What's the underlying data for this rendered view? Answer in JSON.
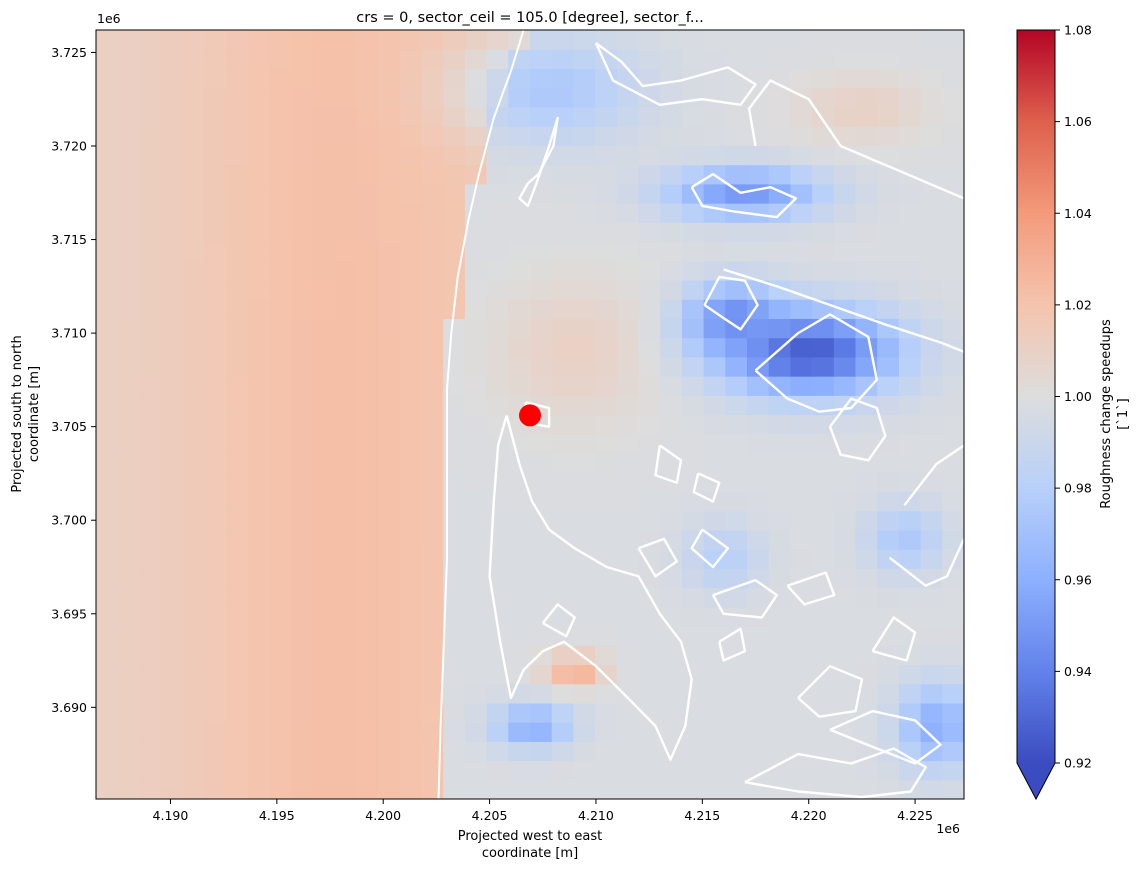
{
  "chart_data": {
    "type": "heatmap",
    "title": "crs = 0, sector_ceil = 105.0 [degree], sector_f...",
    "xlabel_line1": "Projected west to east",
    "xlabel_line2": "coordinate [m]",
    "ylabel_line1": "Projected south to north",
    "ylabel_line2": "coordinate [m]",
    "x_offset_label": "1e6",
    "y_offset_label": "1e6",
    "xlim": [
      4.1865,
      4.2273
    ],
    "ylim": [
      3.6851,
      3.7262
    ],
    "x_ticks": [
      4.19,
      4.195,
      4.2,
      4.205,
      4.21,
      4.215,
      4.22,
      4.225
    ],
    "x_tick_labels": [
      "4.190",
      "4.195",
      "4.200",
      "4.205",
      "4.210",
      "4.215",
      "4.220",
      "4.225"
    ],
    "y_ticks": [
      3.69,
      3.695,
      3.7,
      3.705,
      3.71,
      3.715,
      3.72,
      3.725
    ],
    "y_tick_labels": [
      "3.690",
      "3.695",
      "3.700",
      "3.705",
      "3.710",
      "3.715",
      "3.720",
      "3.725"
    ],
    "grid": false,
    "grid_resolution": [
      40,
      40
    ],
    "colormap": "coolwarm",
    "colormap_low": "#3b4cc0",
    "colormap_mid": "#dddddd",
    "colormap_high": "#b40426",
    "colorbar": {
      "label_line1": "Roughness change speedups",
      "label_line2": "[`1`]",
      "vmin": 0.92,
      "vmax": 1.08,
      "extend": "min",
      "ticks": [
        0.92,
        0.94,
        0.96,
        0.98,
        1.0,
        1.02,
        1.04,
        1.06,
        1.08
      ],
      "tick_labels": [
        "0.92",
        "0.94",
        "0.96",
        "0.98",
        "1.00",
        "1.02",
        "1.04",
        "1.06",
        "1.08"
      ]
    },
    "field_features": [
      {
        "kind": "west_gradient",
        "value_far_west": 1.01,
        "value_near_coast": 1.02
      },
      {
        "kind": "blob",
        "x": 4.22,
        "y": 3.709,
        "rx": 0.0045,
        "ry": 0.0025,
        "value": 0.925
      },
      {
        "kind": "blob",
        "x": 4.2165,
        "y": 3.7108,
        "rx": 0.0025,
        "ry": 0.002,
        "value": 0.945
      },
      {
        "kind": "blob",
        "x": 4.217,
        "y": 3.7175,
        "rx": 0.004,
        "ry": 0.0015,
        "value": 0.95
      },
      {
        "kind": "blob",
        "x": 4.208,
        "y": 3.723,
        "rx": 0.0045,
        "ry": 0.003,
        "value": 0.975
      },
      {
        "kind": "blob",
        "x": 4.207,
        "y": 3.689,
        "rx": 0.002,
        "ry": 0.0013,
        "value": 0.96
      },
      {
        "kind": "blob",
        "x": 4.209,
        "y": 3.692,
        "rx": 0.0015,
        "ry": 0.001,
        "value": 1.03
      },
      {
        "kind": "blob",
        "x": 4.226,
        "y": 3.689,
        "rx": 0.002,
        "ry": 0.0025,
        "value": 0.96
      },
      {
        "kind": "blob",
        "x": 4.2245,
        "y": 3.699,
        "rx": 0.002,
        "ry": 0.002,
        "value": 0.975
      },
      {
        "kind": "blob",
        "x": 4.216,
        "y": 3.698,
        "rx": 0.002,
        "ry": 0.002,
        "value": 0.98
      },
      {
        "kind": "blob",
        "x": 4.2225,
        "y": 3.722,
        "rx": 0.0035,
        "ry": 0.002,
        "value": 1.01
      }
    ],
    "marker": {
      "x": 4.2069,
      "y": 3.7056,
      "color": "#ff0000"
    },
    "contour_color": "#ffffff",
    "coastline": [
      [
        4.2066,
        3.7262
      ],
      [
        4.206,
        3.724
      ],
      [
        4.2052,
        3.7215
      ],
      [
        4.2045,
        3.7185
      ],
      [
        4.204,
        3.716
      ],
      [
        4.2035,
        3.713
      ],
      [
        4.2032,
        3.71
      ],
      [
        4.203,
        3.707
      ],
      [
        4.203,
        3.704
      ],
      [
        4.203,
        3.701
      ],
      [
        4.203,
        3.698
      ],
      [
        4.2029,
        3.695
      ],
      [
        4.2028,
        3.692
      ],
      [
        4.2027,
        3.689
      ],
      [
        4.2026,
        3.6851
      ]
    ],
    "contours": [
      [
        [
          4.2073,
          3.7185
        ],
        [
          4.208,
          3.72
        ],
        [
          4.2082,
          3.7215
        ],
        [
          4.2078,
          3.72
        ],
        [
          4.2072,
          3.718
        ],
        [
          4.2068,
          3.7168
        ],
        [
          4.2064,
          3.7172
        ],
        [
          4.2068,
          3.718
        ],
        [
          4.2073,
          3.7185
        ]
      ],
      [
        [
          4.2058,
          3.7056
        ],
        [
          4.2064,
          3.703
        ],
        [
          4.207,
          3.701
        ],
        [
          4.2078,
          3.6995
        ],
        [
          4.209,
          3.6985
        ],
        [
          4.2105,
          3.6975
        ],
        [
          4.212,
          3.697
        ],
        [
          4.213,
          3.695
        ],
        [
          4.214,
          3.6935
        ],
        [
          4.2145,
          3.6915
        ],
        [
          4.2142,
          3.689
        ],
        [
          4.2135,
          3.6872
        ],
        [
          4.2128,
          3.689
        ],
        [
          4.2115,
          3.6905
        ],
        [
          4.21,
          3.6922
        ],
        [
          4.2085,
          3.6935
        ],
        [
          4.2075,
          3.693
        ],
        [
          4.2066,
          3.692
        ],
        [
          4.206,
          3.6905
        ],
        [
          4.2055,
          3.6935
        ],
        [
          4.205,
          3.697
        ],
        [
          4.2052,
          3.701
        ],
        [
          4.2054,
          3.704
        ],
        [
          4.2058,
          3.7056
        ]
      ],
      [
        [
          4.2067,
          3.7063
        ],
        [
          4.2078,
          3.706
        ],
        [
          4.2078,
          3.705
        ],
        [
          4.2067,
          3.7052
        ],
        [
          4.2067,
          3.7063
        ]
      ],
      [
        [
          4.2151,
          3.7115
        ],
        [
          4.2158,
          3.713
        ],
        [
          4.217,
          3.7128
        ],
        [
          4.2176,
          3.7115
        ],
        [
          4.2168,
          3.7102
        ],
        [
          4.216,
          3.7108
        ],
        [
          4.2151,
          3.7115
        ]
      ],
      [
        [
          4.2175,
          3.708
        ],
        [
          4.2195,
          3.71
        ],
        [
          4.221,
          3.711
        ],
        [
          4.2228,
          3.7098
        ],
        [
          4.2232,
          3.7075
        ],
        [
          4.222,
          3.706
        ],
        [
          4.2205,
          3.7058
        ],
        [
          4.219,
          3.7065
        ],
        [
          4.2175,
          3.708
        ]
      ],
      [
        [
          4.221,
          3.705
        ],
        [
          4.222,
          3.7065
        ],
        [
          4.2232,
          3.706
        ],
        [
          4.2236,
          3.7045
        ],
        [
          4.2228,
          3.7032
        ],
        [
          4.2215,
          3.7035
        ],
        [
          4.221,
          3.705
        ]
      ],
      [
        [
          4.216,
          3.7134
        ],
        [
          4.2185,
          3.7125
        ],
        [
          4.221,
          3.7115
        ],
        [
          4.2235,
          3.7105
        ],
        [
          4.2262,
          3.7095
        ],
        [
          4.2273,
          3.709
        ]
      ],
      [
        [
          4.2145,
          3.7178
        ],
        [
          4.2155,
          3.7185
        ],
        [
          4.2168,
          3.7175
        ],
        [
          4.2182,
          3.7178
        ],
        [
          4.2194,
          3.7172
        ],
        [
          4.2185,
          3.7162
        ],
        [
          4.2165,
          3.7165
        ],
        [
          4.215,
          3.7168
        ],
        [
          4.2145,
          3.7178
        ]
      ],
      [
        [
          4.2175,
          3.72
        ],
        [
          4.2172,
          3.722
        ],
        [
          4.2182,
          3.7235
        ],
        [
          4.22,
          3.7225
        ],
        [
          4.2215,
          3.72
        ],
        [
          4.224,
          3.7188
        ],
        [
          4.2273,
          3.7172
        ]
      ],
      [
        [
          4.21,
          3.7255
        ],
        [
          4.2112,
          3.7245
        ],
        [
          4.2122,
          3.7232
        ],
        [
          4.214,
          3.7235
        ],
        [
          4.2162,
          3.7242
        ],
        [
          4.2175,
          3.7233
        ],
        [
          4.2168,
          3.7222
        ],
        [
          4.215,
          3.7225
        ],
        [
          4.213,
          3.7222
        ],
        [
          4.2108,
          3.7235
        ],
        [
          4.21,
          3.7255
        ]
      ],
      [
        [
          4.2245,
          3.7008
        ],
        [
          4.226,
          3.703
        ],
        [
          4.2273,
          3.704
        ]
      ],
      [
        [
          4.2238,
          3.698
        ],
        [
          4.2255,
          3.6965
        ],
        [
          4.2265,
          3.697
        ],
        [
          4.2273,
          3.699
        ]
      ],
      [
        [
          4.213,
          3.704
        ],
        [
          4.214,
          3.7032
        ],
        [
          4.2138,
          3.702
        ],
        [
          4.2128,
          3.7024
        ],
        [
          4.213,
          3.704
        ]
      ],
      [
        [
          4.2148,
          3.7025
        ],
        [
          4.2158,
          3.702
        ],
        [
          4.2155,
          3.701
        ],
        [
          4.2146,
          3.7015
        ],
        [
          4.2148,
          3.7025
        ]
      ],
      [
        [
          4.215,
          3.6995
        ],
        [
          4.2162,
          3.6985
        ],
        [
          4.2155,
          3.6975
        ],
        [
          4.2145,
          3.6985
        ],
        [
          4.215,
          3.6995
        ]
      ],
      [
        [
          4.212,
          3.6985
        ],
        [
          4.2132,
          3.699
        ],
        [
          4.2138,
          3.6978
        ],
        [
          4.2128,
          3.697
        ],
        [
          4.212,
          3.6985
        ]
      ],
      [
        [
          4.2155,
          3.696
        ],
        [
          4.2175,
          3.6968
        ],
        [
          4.2185,
          3.696
        ],
        [
          4.2178,
          3.6948
        ],
        [
          4.216,
          3.695
        ],
        [
          4.2155,
          3.696
        ]
      ],
      [
        [
          4.219,
          3.6965
        ],
        [
          4.2208,
          3.6972
        ],
        [
          4.2212,
          3.696
        ],
        [
          4.2198,
          3.6955
        ],
        [
          4.219,
          3.6965
        ]
      ],
      [
        [
          4.2195,
          3.6905
        ],
        [
          4.221,
          3.6922
        ],
        [
          4.2225,
          3.6915
        ],
        [
          4.2222,
          3.6898
        ],
        [
          4.2205,
          3.6895
        ],
        [
          4.2195,
          3.6905
        ]
      ],
      [
        [
          4.223,
          3.693
        ],
        [
          4.224,
          3.6948
        ],
        [
          4.225,
          3.694
        ],
        [
          4.2246,
          3.6925
        ],
        [
          4.223,
          3.693
        ]
      ],
      [
        [
          4.217,
          3.686
        ],
        [
          4.2195,
          3.6875
        ],
        [
          4.222,
          3.687
        ],
        [
          4.224,
          3.6878
        ],
        [
          4.2255,
          3.6868
        ],
        [
          4.2248,
          3.6855
        ],
        [
          4.2225,
          3.6852
        ],
        [
          4.2195,
          3.6855
        ],
        [
          4.217,
          3.686
        ]
      ],
      [
        [
          4.221,
          3.6888
        ],
        [
          4.223,
          3.6898
        ],
        [
          4.225,
          3.6893
        ],
        [
          4.2262,
          3.688
        ],
        [
          4.225,
          3.687
        ],
        [
          4.2232,
          3.6878
        ],
        [
          4.221,
          3.6888
        ]
      ],
      [
        [
          4.2158,
          3.6935
        ],
        [
          4.2168,
          3.6942
        ],
        [
          4.217,
          3.693
        ],
        [
          4.216,
          3.6925
        ],
        [
          4.2158,
          3.6935
        ]
      ],
      [
        [
          4.2075,
          3.6945
        ],
        [
          4.2082,
          3.6955
        ],
        [
          4.209,
          3.6948
        ],
        [
          4.2086,
          3.6938
        ],
        [
          4.2075,
          3.6945
        ]
      ]
    ]
  }
}
